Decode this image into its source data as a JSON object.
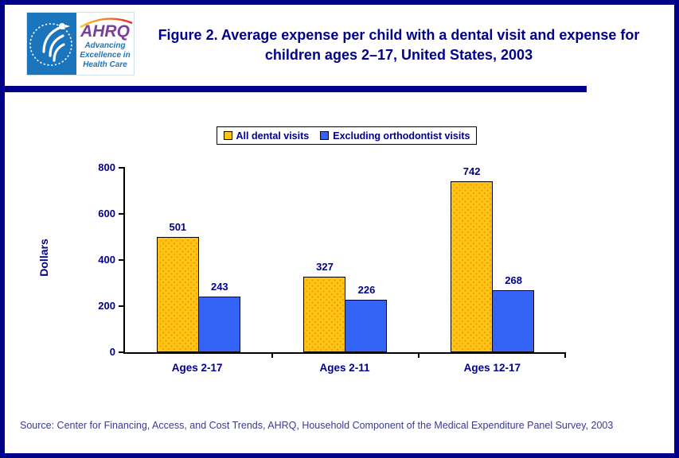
{
  "page": {
    "title": "Figure 2. Average expense per child with a dental visit and expense for children ages 2–17, United States, 2003",
    "source": "Source: Center for Financing, Access, and Cost Trends, AHRQ, Household Component of the Medical Expenditure Panel Survey, 2003"
  },
  "logo": {
    "org_abbr": "AHRQ",
    "tagline_lines": [
      "Advancing",
      "Excellence in",
      "Health Care"
    ]
  },
  "colors": {
    "navy": "#00008B",
    "bar_yellow": "#FFC412",
    "bar_yellow_dot": "#F09618",
    "bar_blue": "#3364F6",
    "logo_blue": "#1B75BC",
    "ahrq_purple": "#7B3F98"
  },
  "chart_data": {
    "type": "bar",
    "title": "",
    "categories": [
      "Ages 2-17",
      "Ages 2-11",
      "Ages 12-17"
    ],
    "series": [
      {
        "name": "All dental visits",
        "color": "#FFC412",
        "pattern": "dots",
        "values": [
          501,
          327,
          742
        ]
      },
      {
        "name": "Excluding orthodontist visits",
        "color": "#3364F6",
        "pattern": "solid",
        "values": [
          243,
          226,
          268
        ]
      }
    ],
    "xlabel": "",
    "ylabel": "Dollars",
    "ylim": [
      0,
      800
    ],
    "yticks": [
      0,
      200,
      400,
      600,
      800
    ],
    "grid": false,
    "legend_position": "top-center",
    "value_labels": true
  }
}
